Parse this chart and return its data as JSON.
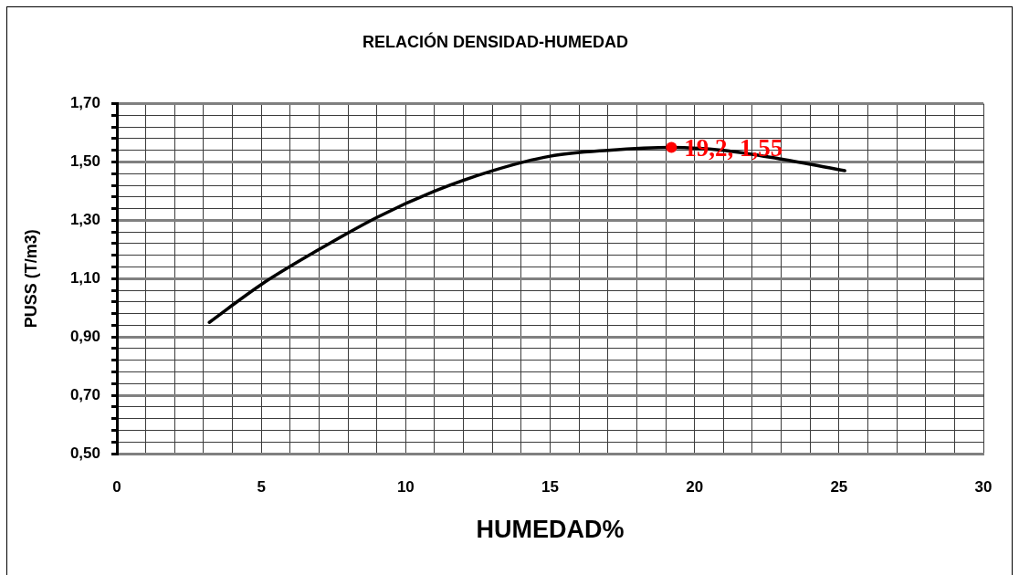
{
  "chart_data": {
    "type": "line",
    "title": "RELACIÓN DENSIDAD-HUMEDAD",
    "xlabel": "HUMEDAD%",
    "ylabel": "PUSS (T/m3)",
    "xlim": [
      0,
      30
    ],
    "xticks": [
      0,
      {
        "value": 1,
        "label": null
      },
      {
        "value": 2,
        "label": null
      },
      {
        "value": 3,
        "label": null
      },
      {
        "value": 4,
        "label": null
      },
      5,
      {
        "value": 6,
        "label": null
      },
      {
        "value": 7,
        "label": null
      },
      {
        "value": 8,
        "label": null
      },
      {
        "value": 9,
        "label": null
      },
      10,
      {
        "value": 11,
        "label": null
      },
      {
        "value": 12,
        "label": null
      },
      {
        "value": 13,
        "label": null
      },
      {
        "value": 14,
        "label": null
      },
      15,
      {
        "value": 16,
        "label": null
      },
      {
        "value": 17,
        "label": null
      },
      {
        "value": 18,
        "label": null
      },
      {
        "value": 19,
        "label": null
      },
      20,
      {
        "value": 21,
        "label": null
      },
      {
        "value": 22,
        "label": null
      },
      {
        "value": 23,
        "label": null
      },
      {
        "value": 24,
        "label": null
      },
      25,
      {
        "value": 26,
        "label": null
      },
      {
        "value": 27,
        "label": null
      },
      {
        "value": 28,
        "label": null
      },
      {
        "value": 29,
        "label": null
      },
      30
    ],
    "ylim": [
      0.5,
      1.7
    ],
    "yticks": [
      {
        "value": 0.5,
        "label": "0,50"
      },
      {
        "value": 0.54,
        "label": null
      },
      {
        "value": 0.58,
        "label": null
      },
      {
        "value": 0.62,
        "label": null
      },
      {
        "value": 0.66,
        "label": null
      },
      {
        "value": 0.7,
        "label": "0,70"
      },
      {
        "value": 0.74,
        "label": null
      },
      {
        "value": 0.78,
        "label": null
      },
      {
        "value": 0.82,
        "label": null
      },
      {
        "value": 0.86,
        "label": null
      },
      {
        "value": 0.9,
        "label": "0,90"
      },
      {
        "value": 0.94,
        "label": null
      },
      {
        "value": 0.98,
        "label": null
      },
      {
        "value": 1.02,
        "label": null
      },
      {
        "value": 1.06,
        "label": null
      },
      {
        "value": 1.1,
        "label": "1,10"
      },
      {
        "value": 1.14,
        "label": null
      },
      {
        "value": 1.18,
        "label": null
      },
      {
        "value": 1.22,
        "label": null
      },
      {
        "value": 1.26,
        "label": null
      },
      {
        "value": 1.3,
        "label": "1,30"
      },
      {
        "value": 1.34,
        "label": null
      },
      {
        "value": 1.38,
        "label": null
      },
      {
        "value": 1.42,
        "label": null
      },
      {
        "value": 1.46,
        "label": null
      },
      {
        "value": 1.5,
        "label": "1,50"
      },
      {
        "value": 1.54,
        "label": null
      },
      {
        "value": 1.58,
        "label": null
      },
      {
        "value": 1.62,
        "label": null
      },
      {
        "value": 1.66,
        "label": null
      },
      {
        "value": 1.7,
        "label": "1,70"
      }
    ],
    "grid": true,
    "series": [
      {
        "color": "#000000",
        "marker": "none",
        "x": [
          3.2,
          5,
          7,
          9,
          11,
          13,
          15,
          17,
          19.2,
          21,
          23,
          25.2
        ],
        "values": [
          0.95,
          1.08,
          1.2,
          1.31,
          1.4,
          1.47,
          1.52,
          1.54,
          1.55,
          1.54,
          1.51,
          1.47
        ]
      },
      {
        "type": "scatter",
        "color": "#ff0000",
        "marker": "circle",
        "x": [
          19.2
        ],
        "values": [
          1.55
        ],
        "value_labels": [
          "19,2, 1,55"
        ]
      }
    ]
  }
}
